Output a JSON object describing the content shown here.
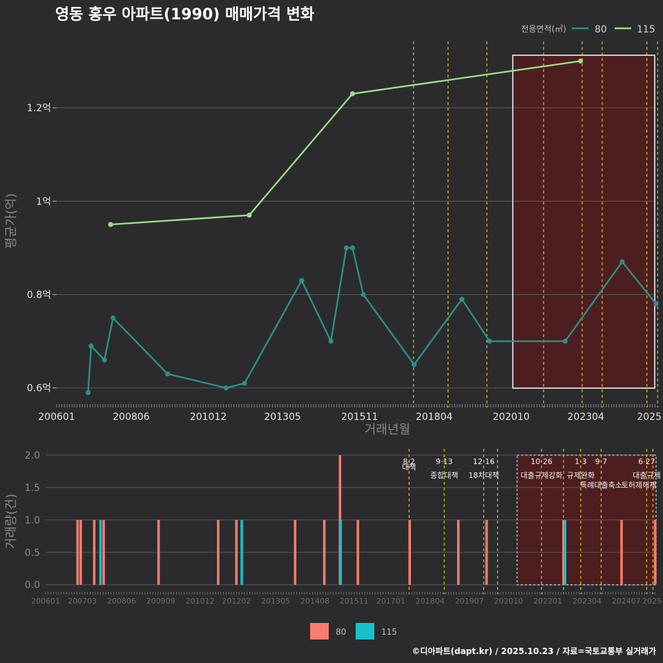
{
  "title": "영동 홍우 아파트(1990) 매매가격 변화",
  "credit": "©디아파트(dapt.kr) / 2025.10.23 / 자료=국토교통부 실거래가",
  "colors": {
    "bg": "#2b2b2d",
    "series80": "#2e8f8c",
    "series115": "#98e08a",
    "bar80": "#fa7c6e",
    "bar115": "#16c1c9",
    "vline": "#e6c619",
    "shade": "#4d1e1f",
    "grid": "#5a5a5c"
  },
  "chart_data": [
    {
      "type": "line",
      "title": "영동 홍우 아파트(1990) 매매가격 변화",
      "xlabel": "거래년월",
      "ylabel": "평균가(억)",
      "legend_title": "전용면적(㎡)",
      "legend_position": "top-right",
      "xlim": [
        2006.0,
        2025.45
      ],
      "ylim": [
        0.57,
        1.345
      ],
      "x_ticks": [
        "200601",
        "200806",
        "201012",
        "201305",
        "201511",
        "201804",
        "202010",
        "202304",
        "2025"
      ],
      "x_tick_values": [
        2006.0,
        2008.42,
        2010.92,
        2013.33,
        2015.83,
        2018.25,
        2020.75,
        2023.17,
        2025.0
      ],
      "y_ticks": [
        "0.6억",
        "0.8억",
        "1억",
        "1.2억"
      ],
      "y_tick_values": [
        0.6,
        0.8,
        1.0,
        1.2
      ],
      "highlight_range": [
        2020.8,
        2025.45
      ],
      "policy_lines": [
        2017.58,
        2018.7,
        2019.96,
        2021.8,
        2023.05,
        2023.7,
        2025.15,
        2025.5
      ],
      "series": [
        {
          "name": "80",
          "x": [
            2007.02,
            2007.12,
            2007.55,
            2007.83,
            2009.6,
            2011.5,
            2012.1,
            2013.95,
            2014.9,
            2015.4,
            2015.6,
            2015.95,
            2017.6,
            2019.15,
            2020.05,
            2022.5,
            2024.35,
            2025.45
          ],
          "values": [
            0.59,
            0.69,
            0.66,
            0.75,
            0.63,
            0.6,
            0.61,
            0.83,
            0.7,
            0.9,
            0.9,
            0.8,
            0.65,
            0.79,
            0.7,
            0.7,
            0.87,
            0.78
          ]
        },
        {
          "name": "115",
          "x": [
            2007.75,
            2012.25,
            2015.6,
            2023.0
          ],
          "values": [
            0.95,
            0.97,
            1.23,
            1.3
          ]
        }
      ]
    },
    {
      "type": "bar",
      "ylabel": "거래량(건)",
      "xlim": [
        2006.0,
        2025.45
      ],
      "ylim": [
        -0.12,
        2.0
      ],
      "x_ticks": [
        "200601",
        "200703",
        "200806",
        "200909",
        "201012",
        "201202",
        "201305",
        "201408",
        "201511",
        "201701",
        "201804",
        "201907",
        "202010",
        "202201",
        "202304",
        "202407",
        "2025"
      ],
      "x_tick_values": [
        2006.0,
        2007.17,
        2008.42,
        2009.67,
        2010.92,
        2012.08,
        2013.33,
        2014.58,
        2015.83,
        2017.0,
        2018.25,
        2019.5,
        2020.75,
        2022.0,
        2023.25,
        2024.5,
        2025.0
      ],
      "y_ticks": [
        "0.0",
        "0.5",
        "1.0",
        "1.5",
        "2.0"
      ],
      "y_tick_values": [
        0.0,
        0.5,
        1.0,
        1.5,
        2.0
      ],
      "highlight_range": [
        2020.8,
        2025.45
      ],
      "policy_lines": [
        2017.58,
        2018.7,
        2019.96,
        2020.4,
        2021.8,
        2022.5,
        2023.05,
        2023.7,
        2025.15,
        2025.35
      ],
      "annotations": [
        {
          "date": "8·2",
          "label": "대책",
          "x": 2017.58
        },
        {
          "date": "9·13",
          "label": "종합대책",
          "x": 2018.7
        },
        {
          "date": "12·16",
          "label": "18차대책",
          "x": 2019.96
        },
        {
          "date": "10·26",
          "label": "대출규제강화",
          "x": 2021.8
        },
        {
          "date": "1·3",
          "label": "규제완화",
          "x": 2023.05
        },
        {
          "date": "9·7",
          "label": "특례대출축소",
          "x": 2023.7
        },
        {
          "date": "토허제해제",
          "label": "",
          "x": 2024.9
        },
        {
          "date": "6·27",
          "label": "대출규제",
          "x": 2025.15
        }
      ],
      "series": [
        {
          "name": "80",
          "x": [
            2007.02,
            2007.12,
            2007.55,
            2007.85,
            2009.6,
            2011.5,
            2012.08,
            2013.95,
            2014.88,
            2015.38,
            2015.95,
            2017.6,
            2019.15,
            2020.05,
            2022.5,
            2024.35,
            2025.42
          ],
          "values": [
            1,
            1,
            1,
            1,
            1,
            1,
            1,
            1,
            1,
            2,
            1,
            1,
            1,
            1,
            1,
            1,
            1
          ]
        },
        {
          "name": "115",
          "x": [
            2007.75,
            2012.25,
            2015.4,
            2022.55
          ],
          "values": [
            1,
            1,
            1,
            1
          ]
        }
      ]
    }
  ],
  "legend_bottom": {
    "items": [
      "80",
      "115"
    ]
  }
}
